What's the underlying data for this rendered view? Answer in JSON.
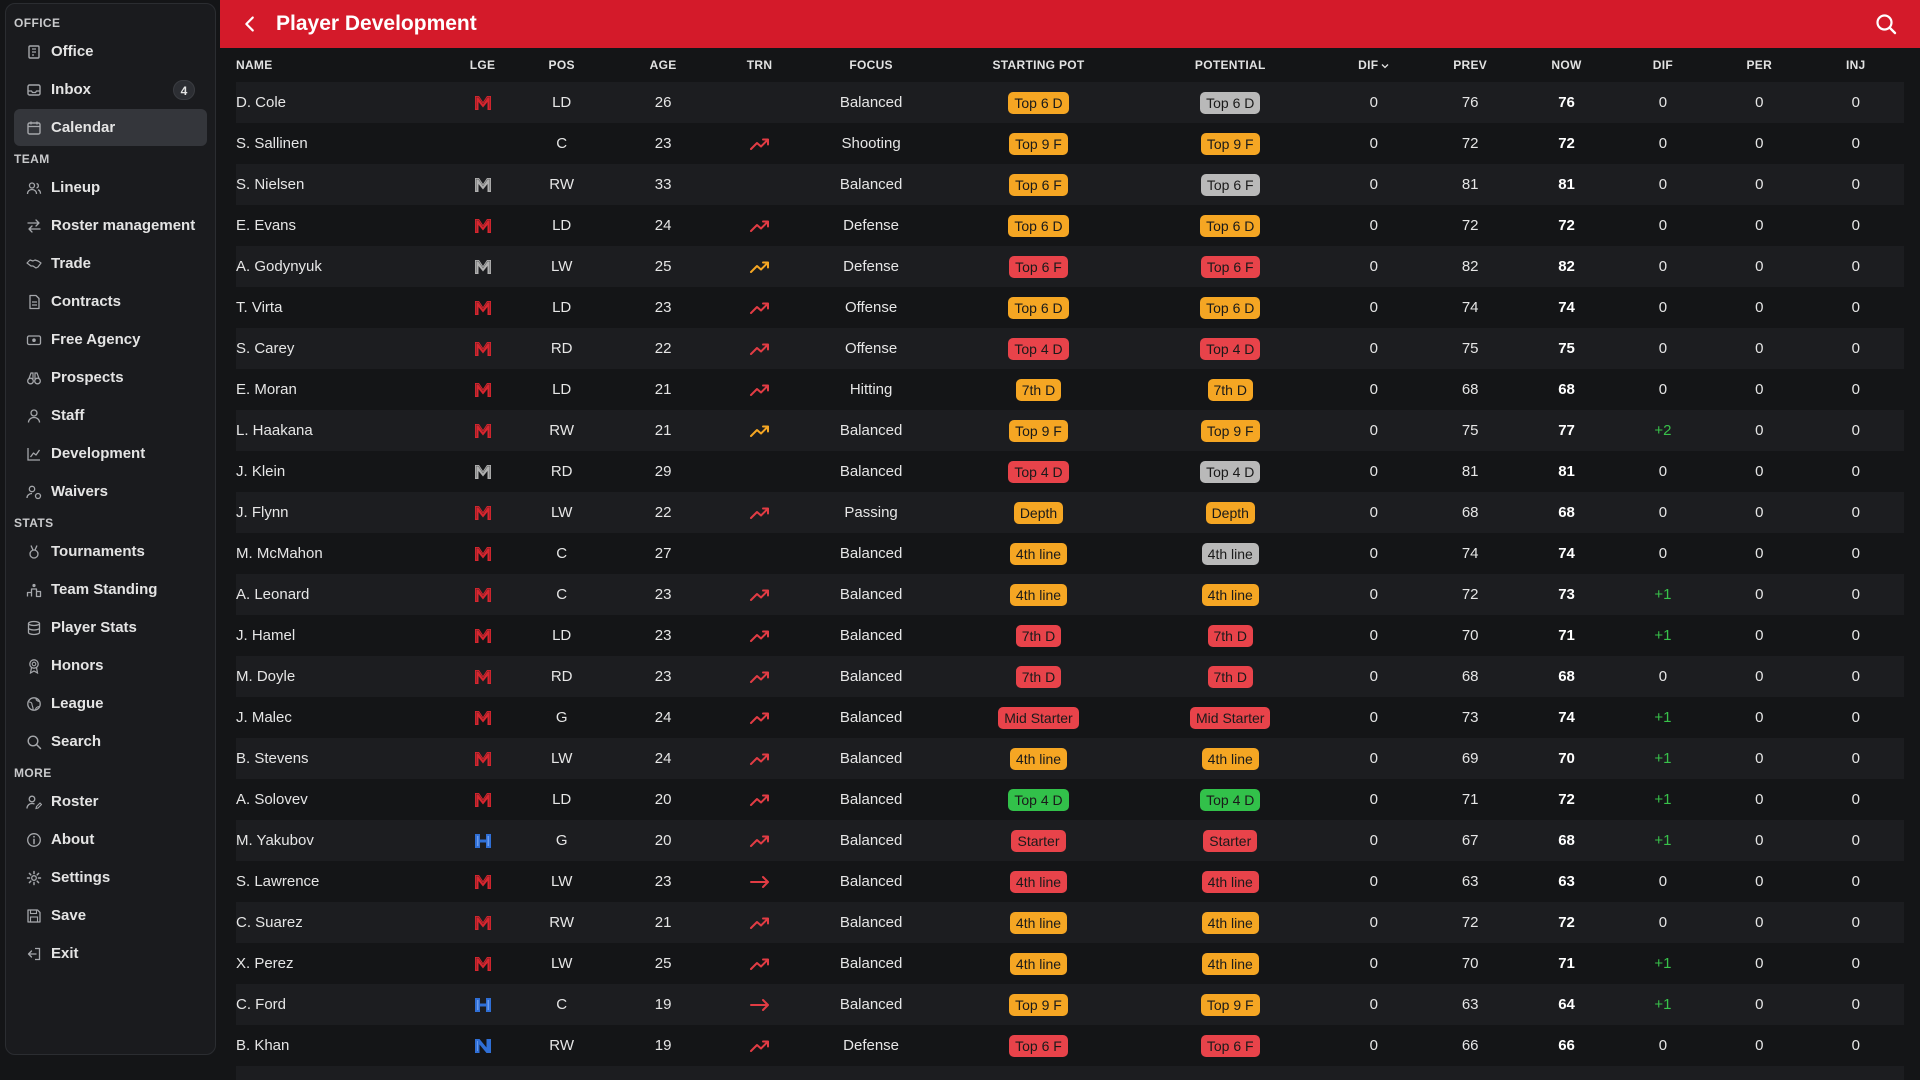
{
  "sidebar": {
    "sections": [
      {
        "title": "OFFICE",
        "items": [
          {
            "label": "Office",
            "icon": "office-icon",
            "active": false
          },
          {
            "label": "Inbox",
            "icon": "inbox-icon",
            "badge": "4",
            "active": false
          },
          {
            "label": "Calendar",
            "icon": "calendar-icon",
            "active": true
          }
        ]
      },
      {
        "title": "TEAM",
        "items": [
          {
            "label": "Lineup",
            "icon": "users-icon"
          },
          {
            "label": "Roster management",
            "icon": "swap-icon"
          },
          {
            "label": "Trade",
            "icon": "handshake-icon"
          },
          {
            "label": "Contracts",
            "icon": "document-icon"
          },
          {
            "label": "Free Agency",
            "icon": "ticket-icon"
          },
          {
            "label": "Prospects",
            "icon": "binoculars-icon"
          },
          {
            "label": "Staff",
            "icon": "person-icon"
          },
          {
            "label": "Development",
            "icon": "chart-icon"
          },
          {
            "label": "Waivers",
            "icon": "user-wave-icon"
          }
        ]
      },
      {
        "title": "STATS",
        "items": [
          {
            "label": "Tournaments",
            "icon": "medal-icon"
          },
          {
            "label": "Team Standing",
            "icon": "podium-icon"
          },
          {
            "label": "Player Stats",
            "icon": "database-icon"
          },
          {
            "label": "Honors",
            "icon": "award-icon"
          },
          {
            "label": "League",
            "icon": "globe-icon"
          },
          {
            "label": "Search",
            "icon": "search-icon"
          }
        ]
      },
      {
        "title": "MORE",
        "items": [
          {
            "label": "Roster",
            "icon": "user-edit-icon"
          },
          {
            "label": "About",
            "icon": "info-icon"
          },
          {
            "label": "Settings",
            "icon": "gear-icon"
          },
          {
            "label": "Save",
            "icon": "save-icon"
          },
          {
            "label": "Exit",
            "icon": "exit-icon"
          }
        ]
      }
    ]
  },
  "header": {
    "title": "Player Development",
    "color": "#d41a2a"
  },
  "table": {
    "columns": [
      "NAME",
      "LGE",
      "POS",
      "AGE",
      "TRN",
      "FOCUS",
      "STARTING POT",
      "POTENTIAL",
      "DIF",
      "PREV",
      "NOW",
      "DIF",
      "PER",
      "INJ"
    ],
    "sorted_column": 8,
    "colors": {
      "orange": "#f5a623",
      "red": "#e8434a",
      "green": "#32c14a",
      "gray": "#b9b9b9",
      "trend_red": "#e23c44",
      "trend_orange": "#f5a623",
      "logo_red": "#d8262f",
      "logo_gray": "#b0b0b0",
      "logo_blue": "#2f6fd6"
    },
    "rows": [
      {
        "name": "D. Cole",
        "lge": "M",
        "lge_color": "red",
        "pos": "LD",
        "age": "26",
        "trn": "none",
        "focus": "Balanced",
        "start_pot": "Top 6 D",
        "start_color": "orange",
        "pot": "Top 6 D",
        "pot_color": "gray",
        "dif": "0",
        "prev": "76",
        "now": "76",
        "dif2": "0",
        "per": "0",
        "inj": "0"
      },
      {
        "name": "S. Sallinen",
        "lge": "",
        "lge_color": "",
        "pos": "C",
        "age": "23",
        "trn": "up-red",
        "focus": "Shooting",
        "start_pot": "Top 9 F",
        "start_color": "orange",
        "pot": "Top 9 F",
        "pot_color": "orange",
        "dif": "0",
        "prev": "72",
        "now": "72",
        "dif2": "0",
        "per": "0",
        "inj": "0"
      },
      {
        "name": "S. Nielsen",
        "lge": "M",
        "lge_color": "gray",
        "pos": "RW",
        "age": "33",
        "trn": "none",
        "focus": "Balanced",
        "start_pot": "Top 6 F",
        "start_color": "orange",
        "pot": "Top 6 F",
        "pot_color": "gray",
        "dif": "0",
        "prev": "81",
        "now": "81",
        "dif2": "0",
        "per": "0",
        "inj": "0"
      },
      {
        "name": "E. Evans",
        "lge": "M",
        "lge_color": "red",
        "pos": "LD",
        "age": "24",
        "trn": "up-red",
        "focus": "Defense",
        "start_pot": "Top 6 D",
        "start_color": "orange",
        "pot": "Top 6 D",
        "pot_color": "orange",
        "dif": "0",
        "prev": "72",
        "now": "72",
        "dif2": "0",
        "per": "0",
        "inj": "0"
      },
      {
        "name": "A. Godynyuk",
        "lge": "M",
        "lge_color": "gray",
        "pos": "LW",
        "age": "25",
        "trn": "up-orange",
        "focus": "Defense",
        "start_pot": "Top 6 F",
        "start_color": "red",
        "pot": "Top 6 F",
        "pot_color": "red",
        "dif": "0",
        "prev": "82",
        "now": "82",
        "dif2": "0",
        "per": "0",
        "inj": "0"
      },
      {
        "name": "T. Virta",
        "lge": "M",
        "lge_color": "red",
        "pos": "LD",
        "age": "23",
        "trn": "up-red",
        "focus": "Offense",
        "start_pot": "Top 6 D",
        "start_color": "orange",
        "pot": "Top 6 D",
        "pot_color": "orange",
        "dif": "0",
        "prev": "74",
        "now": "74",
        "dif2": "0",
        "per": "0",
        "inj": "0"
      },
      {
        "name": "S. Carey",
        "lge": "M",
        "lge_color": "red",
        "pos": "RD",
        "age": "22",
        "trn": "up-red",
        "focus": "Offense",
        "start_pot": "Top 4 D",
        "start_color": "red",
        "pot": "Top 4 D",
        "pot_color": "red",
        "dif": "0",
        "prev": "75",
        "now": "75",
        "dif2": "0",
        "per": "0",
        "inj": "0"
      },
      {
        "name": "E. Moran",
        "lge": "M",
        "lge_color": "red",
        "pos": "LD",
        "age": "21",
        "trn": "up-red",
        "focus": "Hitting",
        "start_pot": "7th D",
        "start_color": "orange",
        "pot": "7th D",
        "pot_color": "orange",
        "dif": "0",
        "prev": "68",
        "now": "68",
        "dif2": "0",
        "per": "0",
        "inj": "0"
      },
      {
        "name": "L. Haakana",
        "lge": "M",
        "lge_color": "red",
        "pos": "RW",
        "age": "21",
        "trn": "up-orange",
        "focus": "Balanced",
        "start_pot": "Top 9 F",
        "start_color": "orange",
        "pot": "Top 9 F",
        "pot_color": "orange",
        "dif": "0",
        "prev": "75",
        "now": "77",
        "dif2": "+2",
        "per": "0",
        "inj": "0"
      },
      {
        "name": "J. Klein",
        "lge": "M",
        "lge_color": "gray",
        "pos": "RD",
        "age": "29",
        "trn": "none",
        "focus": "Balanced",
        "start_pot": "Top 4 D",
        "start_color": "red",
        "pot": "Top 4 D",
        "pot_color": "gray",
        "dif": "0",
        "prev": "81",
        "now": "81",
        "dif2": "0",
        "per": "0",
        "inj": "0"
      },
      {
        "name": "J. Flynn",
        "lge": "M",
        "lge_color": "red",
        "pos": "LW",
        "age": "22",
        "trn": "up-red",
        "focus": "Passing",
        "start_pot": "Depth",
        "start_color": "orange",
        "pot": "Depth",
        "pot_color": "orange",
        "dif": "0",
        "prev": "68",
        "now": "68",
        "dif2": "0",
        "per": "0",
        "inj": "0"
      },
      {
        "name": "M. McMahon",
        "lge": "M",
        "lge_color": "red",
        "pos": "C",
        "age": "27",
        "trn": "none",
        "focus": "Balanced",
        "start_pot": "4th line",
        "start_color": "orange",
        "pot": "4th line",
        "pot_color": "gray",
        "dif": "0",
        "prev": "74",
        "now": "74",
        "dif2": "0",
        "per": "0",
        "inj": "0"
      },
      {
        "name": "A. Leonard",
        "lge": "M",
        "lge_color": "red",
        "pos": "C",
        "age": "23",
        "trn": "up-red",
        "focus": "Balanced",
        "start_pot": "4th line",
        "start_color": "orange",
        "pot": "4th line",
        "pot_color": "orange",
        "dif": "0",
        "prev": "72",
        "now": "73",
        "dif2": "+1",
        "per": "0",
        "inj": "0"
      },
      {
        "name": "J. Hamel",
        "lge": "M",
        "lge_color": "red",
        "pos": "LD",
        "age": "23",
        "trn": "up-red",
        "focus": "Balanced",
        "start_pot": "7th D",
        "start_color": "red",
        "pot": "7th D",
        "pot_color": "red",
        "dif": "0",
        "prev": "70",
        "now": "71",
        "dif2": "+1",
        "per": "0",
        "inj": "0"
      },
      {
        "name": "M. Doyle",
        "lge": "M",
        "lge_color": "red",
        "pos": "RD",
        "age": "23",
        "trn": "up-red",
        "focus": "Balanced",
        "start_pot": "7th D",
        "start_color": "red",
        "pot": "7th D",
        "pot_color": "red",
        "dif": "0",
        "prev": "68",
        "now": "68",
        "dif2": "0",
        "per": "0",
        "inj": "0"
      },
      {
        "name": "J. Malec",
        "lge": "M",
        "lge_color": "red",
        "pos": "G",
        "age": "24",
        "trn": "up-red",
        "focus": "Balanced",
        "start_pot": "Mid Starter",
        "start_color": "red",
        "pot": "Mid Starter",
        "pot_color": "red",
        "dif": "0",
        "prev": "73",
        "now": "74",
        "dif2": "+1",
        "per": "0",
        "inj": "0"
      },
      {
        "name": "B. Stevens",
        "lge": "M",
        "lge_color": "red",
        "pos": "LW",
        "age": "24",
        "trn": "up-red",
        "focus": "Balanced",
        "start_pot": "4th line",
        "start_color": "orange",
        "pot": "4th line",
        "pot_color": "orange",
        "dif": "0",
        "prev": "69",
        "now": "70",
        "dif2": "+1",
        "per": "0",
        "inj": "0"
      },
      {
        "name": "A. Solovev",
        "lge": "M",
        "lge_color": "red",
        "pos": "LD",
        "age": "20",
        "trn": "up-red",
        "focus": "Balanced",
        "start_pot": "Top 4 D",
        "start_color": "green",
        "pot": "Top 4 D",
        "pot_color": "green",
        "dif": "0",
        "prev": "71",
        "now": "72",
        "dif2": "+1",
        "per": "0",
        "inj": "0"
      },
      {
        "name": "M. Yakubov",
        "lge": "H",
        "lge_color": "blue",
        "pos": "G",
        "age": "20",
        "trn": "up-red",
        "focus": "Balanced",
        "start_pot": "Starter",
        "start_color": "red",
        "pot": "Starter",
        "pot_color": "red",
        "dif": "0",
        "prev": "67",
        "now": "68",
        "dif2": "+1",
        "per": "0",
        "inj": "0"
      },
      {
        "name": "S. Lawrence",
        "lge": "M",
        "lge_color": "red",
        "pos": "LW",
        "age": "23",
        "trn": "flat-red",
        "focus": "Balanced",
        "start_pot": "4th line",
        "start_color": "red",
        "pot": "4th line",
        "pot_color": "red",
        "dif": "0",
        "prev": "63",
        "now": "63",
        "dif2": "0",
        "per": "0",
        "inj": "0"
      },
      {
        "name": "C. Suarez",
        "lge": "M",
        "lge_color": "red",
        "pos": "RW",
        "age": "21",
        "trn": "up-red",
        "focus": "Balanced",
        "start_pot": "4th line",
        "start_color": "orange",
        "pot": "4th line",
        "pot_color": "orange",
        "dif": "0",
        "prev": "72",
        "now": "72",
        "dif2": "0",
        "per": "0",
        "inj": "0"
      },
      {
        "name": "X. Perez",
        "lge": "M",
        "lge_color": "red",
        "pos": "LW",
        "age": "25",
        "trn": "up-red",
        "focus": "Balanced",
        "start_pot": "4th line",
        "start_color": "orange",
        "pot": "4th line",
        "pot_color": "orange",
        "dif": "0",
        "prev": "70",
        "now": "71",
        "dif2": "+1",
        "per": "0",
        "inj": "0"
      },
      {
        "name": "C. Ford",
        "lge": "H",
        "lge_color": "blue",
        "pos": "C",
        "age": "19",
        "trn": "flat-red",
        "focus": "Balanced",
        "start_pot": "Top 9 F",
        "start_color": "orange",
        "pot": "Top 9 F",
        "pot_color": "orange",
        "dif": "0",
        "prev": "63",
        "now": "64",
        "dif2": "+1",
        "per": "0",
        "inj": "0"
      },
      {
        "name": "B. Khan",
        "lge": "N",
        "lge_color": "blue",
        "pos": "RW",
        "age": "19",
        "trn": "up-red",
        "focus": "Defense",
        "start_pot": "Top 6 F",
        "start_color": "red",
        "pot": "Top 6 F",
        "pot_color": "red",
        "dif": "0",
        "prev": "66",
        "now": "66",
        "dif2": "0",
        "per": "0",
        "inj": "0"
      },
      {
        "name": "",
        "lge": "",
        "lge_color": "",
        "pos": "",
        "age": "",
        "trn": "none",
        "focus": "",
        "start_pot": "",
        "start_color": "orange",
        "pot": "",
        "pot_color": "orange",
        "dif": "",
        "prev": "",
        "now": "",
        "dif2": "",
        "per": "",
        "inj": ""
      }
    ]
  }
}
